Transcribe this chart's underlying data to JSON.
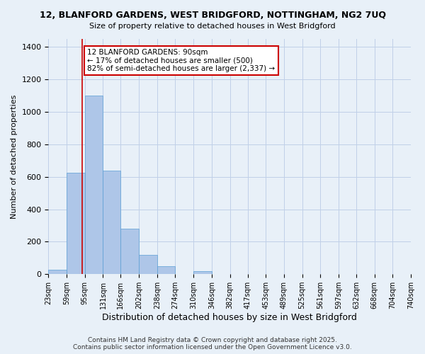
{
  "title1": "12, BLANFORD GARDENS, WEST BRIDGFORD, NOTTINGHAM, NG2 7UQ",
  "title2": "Size of property relative to detached houses in West Bridgford",
  "xlabel": "Distribution of detached houses by size in West Bridgford",
  "ylabel": "Number of detached properties",
  "bar_values": [
    25,
    625,
    1100,
    640,
    280,
    120,
    48,
    0,
    18,
    0,
    0,
    0,
    0,
    0,
    0,
    0,
    0,
    0,
    0,
    0
  ],
  "bar_color": "#aec6e8",
  "bar_edge_color": "#5a9fd4",
  "grid_color": "#c0d0e8",
  "background_color": "#e8f0f8",
  "property_line_x": 90,
  "property_line_color": "#cc0000",
  "annotation_text": "12 BLANFORD GARDENS: 90sqm\n← 17% of detached houses are smaller (500)\n82% of semi-detached houses are larger (2,337) →",
  "annotation_box_color": "#ffffff",
  "annotation_box_edge": "#cc0000",
  "ylim": [
    0,
    1450
  ],
  "yticks": [
    0,
    200,
    400,
    600,
    800,
    1000,
    1200,
    1400
  ],
  "footer": "Contains HM Land Registry data © Crown copyright and database right 2025.\nContains public sector information licensed under the Open Government Licence v3.0.",
  "bin_edges": [
    23,
    59,
    95,
    131,
    166,
    202,
    238,
    274,
    310,
    346,
    382,
    417,
    453,
    489,
    525,
    561,
    597,
    632,
    668,
    704,
    740
  ]
}
